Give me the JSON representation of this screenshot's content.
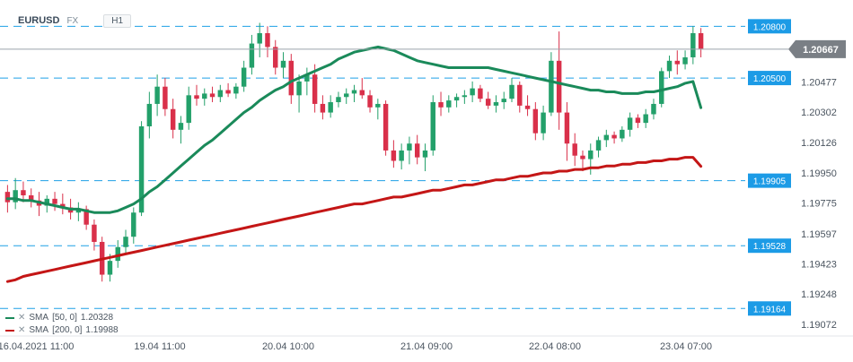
{
  "instrument": {
    "symbol": "EURUSD",
    "type": "FX",
    "timeframe": "H1"
  },
  "indicators": [
    {
      "label": "SMA",
      "params": "[50, 0]",
      "value": "1.20328",
      "color": "#1a8a5a"
    },
    {
      "label": "SMA",
      "params": "[200, 0]",
      "value": "1.19988",
      "color": "#c41616"
    }
  ],
  "colors": {
    "up": "#23a06a",
    "down": "#d9304a",
    "level_line": "#1fa0e6",
    "price_badge": "#7a7f85",
    "level_badge": "#1c9be6"
  },
  "chart_data": {
    "type": "candlestick",
    "ylim": [
      1.1902,
      1.2089
    ],
    "yticks": [
      "1.20477",
      "1.20302",
      "1.20126",
      "1.19950",
      "1.19775",
      "1.19597",
      "1.19423",
      "1.19248",
      "1.19072"
    ],
    "xticks": [
      "16.04.2021 11:00",
      "19.04 11:00",
      "20.04 10:00",
      "21.04 09:00",
      "22.04 08:00",
      "23.04 07:00"
    ],
    "last_price": "1.20667",
    "levels": [
      "1.20800",
      "1.20500",
      "1.19905",
      "1.19528",
      "1.19164"
    ],
    "grid": false,
    "candles": [
      [
        1.1984,
        1.1988,
        1.1972,
        1.1978
      ],
      [
        1.1978,
        1.1992,
        1.1974,
        1.1985
      ],
      [
        1.1985,
        1.199,
        1.1978,
        1.1982
      ],
      [
        1.1982,
        1.1986,
        1.1975,
        1.1979
      ],
      [
        1.1979,
        1.1984,
        1.197,
        1.1976
      ],
      [
        1.1976,
        1.1982,
        1.1972,
        1.198
      ],
      [
        1.198,
        1.1984,
        1.1973,
        1.1977
      ],
      [
        1.1977,
        1.1983,
        1.1971,
        1.1975
      ],
      [
        1.1975,
        1.198,
        1.1968,
        1.1972
      ],
      [
        1.1972,
        1.1978,
        1.1967,
        1.1974
      ],
      [
        1.1974,
        1.1976,
        1.1962,
        1.1965
      ],
      [
        1.1965,
        1.1968,
        1.195,
        1.1955
      ],
      [
        1.1955,
        1.1958,
        1.1932,
        1.1936
      ],
      [
        1.1936,
        1.1948,
        1.1932,
        1.1944
      ],
      [
        1.1944,
        1.1956,
        1.194,
        1.1952
      ],
      [
        1.1952,
        1.1962,
        1.1948,
        1.1958
      ],
      [
        1.1958,
        1.1975,
        1.1954,
        1.1972
      ],
      [
        1.1972,
        1.2025,
        1.197,
        1.2022
      ],
      [
        1.2022,
        1.2042,
        1.2015,
        1.2035
      ],
      [
        1.2035,
        1.2052,
        1.2028,
        1.2045
      ],
      [
        1.2045,
        1.205,
        1.2028,
        1.2032
      ],
      [
        1.2032,
        1.2038,
        1.2015,
        1.202
      ],
      [
        1.202,
        1.2028,
        1.2012,
        1.2024
      ],
      [
        1.2024,
        1.2045,
        1.202,
        1.204
      ],
      [
        1.204,
        1.2046,
        1.2034,
        1.2038
      ],
      [
        1.2038,
        1.2044,
        1.2034,
        1.2041
      ],
      [
        1.2041,
        1.2045,
        1.2036,
        1.2039
      ],
      [
        1.2039,
        1.2046,
        1.2036,
        1.2043
      ],
      [
        1.2043,
        1.2047,
        1.2039,
        1.2041
      ],
      [
        1.2041,
        1.2047,
        1.2038,
        1.2045
      ],
      [
        1.2045,
        1.206,
        1.2042,
        1.2056
      ],
      [
        1.2056,
        1.2075,
        1.2052,
        1.207
      ],
      [
        1.207,
        1.2082,
        1.2062,
        1.2076
      ],
      [
        1.2076,
        1.208,
        1.2062,
        1.2068
      ],
      [
        1.2068,
        1.2072,
        1.2052,
        1.2056
      ],
      [
        1.2056,
        1.2065,
        1.205,
        1.206
      ],
      [
        1.206,
        1.2064,
        1.2035,
        1.204
      ],
      [
        1.204,
        1.2052,
        1.203,
        1.2048
      ],
      [
        1.2048,
        1.2056,
        1.204,
        1.2052
      ],
      [
        1.2052,
        1.2058,
        1.203,
        1.2035
      ],
      [
        1.2035,
        1.204,
        1.2026,
        1.203
      ],
      [
        1.203,
        1.204,
        1.2027,
        1.2036
      ],
      [
        1.2036,
        1.2042,
        1.2033,
        1.2039
      ],
      [
        1.2039,
        1.2044,
        1.2035,
        1.2041
      ],
      [
        1.2041,
        1.2046,
        1.2036,
        1.2043
      ],
      [
        1.2043,
        1.205,
        1.2038,
        1.204
      ],
      [
        1.204,
        1.2043,
        1.203,
        1.2033
      ],
      [
        1.2033,
        1.2038,
        1.2026,
        1.2035
      ],
      [
        1.2035,
        1.2037,
        1.2005,
        1.2008
      ],
      [
        1.2008,
        1.2014,
        1.1998,
        1.2002
      ],
      [
        1.2002,
        1.2012,
        1.1997,
        1.2008
      ],
      [
        1.2008,
        1.2016,
        1.2,
        1.2012
      ],
      [
        1.2012,
        1.2017,
        1.2,
        1.2004
      ],
      [
        1.2004,
        1.2012,
        1.1996,
        1.2008
      ],
      [
        1.2008,
        1.204,
        1.2005,
        1.2036
      ],
      [
        1.2036,
        1.2042,
        1.2028,
        1.2033
      ],
      [
        1.2033,
        1.204,
        1.203,
        1.2037
      ],
      [
        1.2037,
        1.2041,
        1.2033,
        1.2039
      ],
      [
        1.2039,
        1.2043,
        1.2035,
        1.204
      ],
      [
        1.204,
        1.2048,
        1.2036,
        1.2044
      ],
      [
        1.2044,
        1.2046,
        1.2036,
        1.2038
      ],
      [
        1.2038,
        1.2042,
        1.2032,
        1.2034
      ],
      [
        1.2034,
        1.204,
        1.203,
        1.2036
      ],
      [
        1.2036,
        1.2042,
        1.2032,
        1.2038
      ],
      [
        1.2038,
        1.205,
        1.2036,
        1.2046
      ],
      [
        1.2046,
        1.2048,
        1.203,
        1.2034
      ],
      [
        1.2034,
        1.204,
        1.2028,
        1.2032
      ],
      [
        1.2032,
        1.2036,
        1.2014,
        1.2018
      ],
      [
        1.2018,
        1.2034,
        1.2014,
        1.203
      ],
      [
        1.203,
        1.2065,
        1.2028,
        1.206
      ],
      [
        1.206,
        1.2077,
        1.202,
        1.203
      ],
      [
        1.203,
        1.2036,
        1.2002,
        1.2012
      ],
      [
        1.2012,
        1.2018,
        1.1999,
        1.2005
      ],
      [
        1.2005,
        1.2008,
        1.1996,
        1.2003
      ],
      [
        1.2003,
        1.2012,
        1.1994,
        1.2008
      ],
      [
        1.2008,
        1.2016,
        1.2004,
        1.2014
      ],
      [
        1.2014,
        1.202,
        1.201,
        1.2017
      ],
      [
        1.2017,
        1.2019,
        1.2012,
        1.2015
      ],
      [
        1.2015,
        1.2022,
        1.2013,
        1.202
      ],
      [
        1.202,
        1.203,
        1.2016,
        1.2027
      ],
      [
        1.2027,
        1.2029,
        1.2021,
        1.2024
      ],
      [
        1.2024,
        1.2032,
        1.2021,
        1.2029
      ],
      [
        1.2029,
        1.2038,
        1.2026,
        1.2035
      ],
      [
        1.2035,
        1.2056,
        1.2033,
        1.2054
      ],
      [
        1.2054,
        1.2063,
        1.205,
        1.206
      ],
      [
        1.206,
        1.2066,
        1.2052,
        1.2058
      ],
      [
        1.2058,
        1.2066,
        1.2055,
        1.2062
      ],
      [
        1.2062,
        1.208,
        1.2058,
        1.2076
      ],
      [
        1.2076,
        1.2079,
        1.2062,
        1.2067
      ]
    ],
    "series": [
      {
        "name": "SMA [50, 0]",
        "values": [
          1.198,
          1.198,
          1.1979,
          1.1979,
          1.1978,
          1.1977,
          1.1976,
          1.1975,
          1.1974,
          1.1974,
          1.1973,
          1.1972,
          1.1972,
          1.1972,
          1.1973,
          1.1975,
          1.1977,
          1.198,
          1.1984,
          1.1987,
          1.1991,
          1.1995,
          1.1999,
          1.2003,
          1.2007,
          1.2011,
          1.2014,
          1.2018,
          1.2022,
          1.2026,
          1.203,
          1.2033,
          1.2037,
          1.204,
          1.2043,
          1.2045,
          1.2048,
          1.205,
          1.2052,
          1.2054,
          1.2056,
          1.2058,
          1.2061,
          1.2063,
          1.2065,
          1.2066,
          1.2067,
          1.2068,
          1.2067,
          1.2066,
          1.2064,
          1.2062,
          1.206,
          1.2059,
          1.2058,
          1.2057,
          1.2056,
          1.2056,
          1.2056,
          1.2056,
          1.2056,
          1.2056,
          1.2055,
          1.2054,
          1.2053,
          1.2052,
          1.2051,
          1.205,
          1.2049,
          1.2048,
          1.2047,
          1.2046,
          1.2045,
          1.2044,
          1.2043,
          1.2043,
          1.2042,
          1.2042,
          1.2041,
          1.2041,
          1.2041,
          1.2042,
          1.2042,
          1.2043,
          1.2044,
          1.2045,
          1.2047,
          1.2048,
          1.20328
        ]
      },
      {
        "name": "SMA [200, 0]",
        "values": [
          1.1932,
          1.1933,
          1.1935,
          1.1936,
          1.1937,
          1.1938,
          1.1939,
          1.194,
          1.1941,
          1.1942,
          1.1943,
          1.1944,
          1.1945,
          1.1946,
          1.1947,
          1.1948,
          1.1949,
          1.195,
          1.1951,
          1.1952,
          1.1953,
          1.1954,
          1.1955,
          1.1956,
          1.1957,
          1.1958,
          1.1959,
          1.196,
          1.1961,
          1.1962,
          1.1963,
          1.1964,
          1.1965,
          1.1966,
          1.1967,
          1.1968,
          1.1969,
          1.197,
          1.1971,
          1.1972,
          1.1973,
          1.1974,
          1.1975,
          1.1976,
          1.1977,
          1.1977,
          1.1978,
          1.1979,
          1.198,
          1.1981,
          1.1981,
          1.1982,
          1.1983,
          1.1984,
          1.1985,
          1.1985,
          1.1986,
          1.1987,
          1.1988,
          1.1988,
          1.1989,
          1.199,
          1.1991,
          1.1991,
          1.1992,
          1.1993,
          1.1993,
          1.1994,
          1.1995,
          1.1995,
          1.1996,
          1.1996,
          1.1997,
          1.1997,
          1.1998,
          1.1998,
          1.1999,
          1.1999,
          1.2,
          1.2,
          1.2001,
          1.2001,
          1.2002,
          1.2002,
          1.2003,
          1.2003,
          1.2004,
          1.2004,
          1.19988
        ]
      }
    ]
  }
}
